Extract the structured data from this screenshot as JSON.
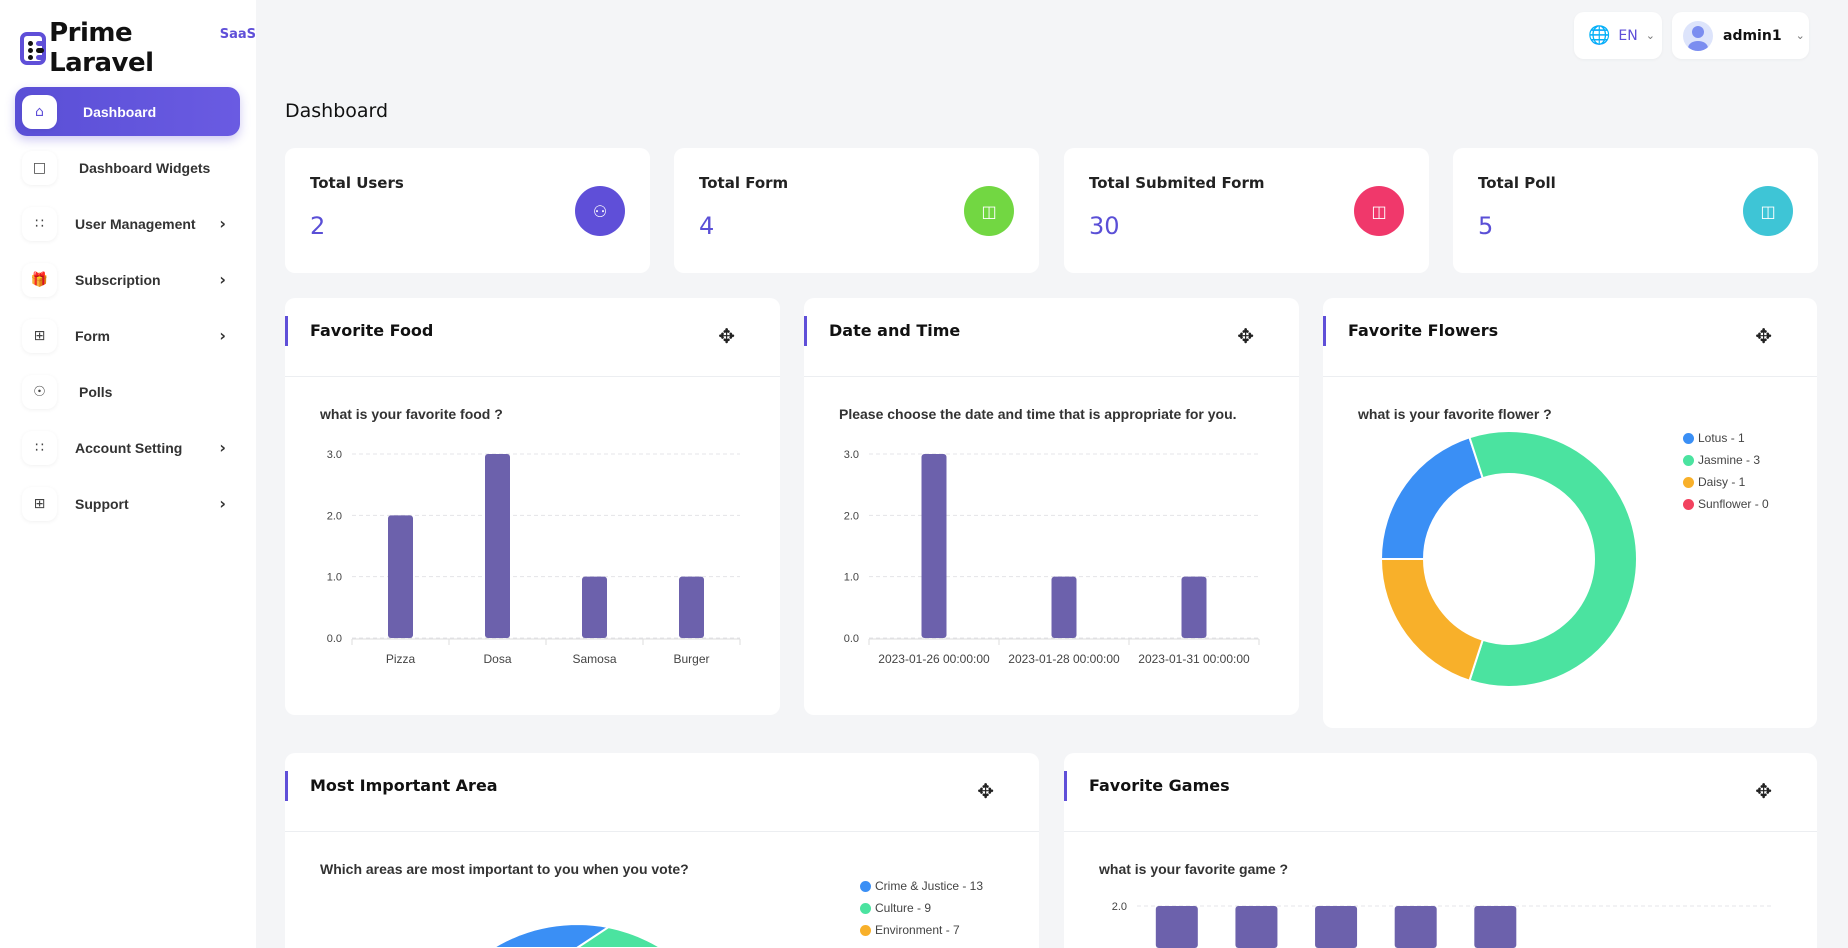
{
  "brand": {
    "name": "Prime Laravel",
    "badge": "SaaS",
    "color": "#5f4fd8"
  },
  "header": {
    "language": "EN",
    "user": "admin1"
  },
  "sidebar": {
    "items": [
      {
        "label": "Dashboard",
        "icon": "home-icon",
        "active": true,
        "has_children": false
      },
      {
        "label": "Dashboard Widgets",
        "icon": "square-icon",
        "has_children": false
      },
      {
        "label": "User Management",
        "icon": "grid-icon",
        "has_children": true
      },
      {
        "label": "Subscription",
        "icon": "gift-icon",
        "has_children": true
      },
      {
        "label": "Form",
        "icon": "table-icon",
        "has_children": true
      },
      {
        "label": "Polls",
        "icon": "accessibility-icon",
        "has_children": false
      },
      {
        "label": "Account Setting",
        "icon": "grid-plus-icon",
        "has_children": true
      },
      {
        "label": "Support",
        "icon": "table-icon",
        "has_children": true
      }
    ]
  },
  "page": {
    "title": "Dashboard"
  },
  "stats": [
    {
      "label": "Total Users",
      "value": "2",
      "color": "#5f4fd8",
      "icon": "users-icon"
    },
    {
      "label": "Total Form",
      "value": "4",
      "color": "#72d742",
      "icon": "form-icon"
    },
    {
      "label": "Total Submited Form",
      "value": "30",
      "color": "#f0386b",
      "icon": "form-icon"
    },
    {
      "label": "Total Poll",
      "value": "5",
      "color": "#3ec5d6",
      "icon": "form-icon"
    }
  ],
  "widgets": {
    "food": {
      "title": "Favorite Food",
      "question": "what is your favorite food ?"
    },
    "date": {
      "title": "Date and Time",
      "question": "Please choose the date and time that is appropriate for you."
    },
    "flowers": {
      "title": "Favorite Flowers",
      "question": "what is your favorite flower ?"
    },
    "area": {
      "title": "Most Important Area",
      "question": "Which areas are most important to you when you vote?"
    },
    "games": {
      "title": "Favorite Games",
      "question": "what is your favorite game ?"
    }
  },
  "chart_data": [
    {
      "type": "bar",
      "categories": [
        "Pizza",
        "Dosa",
        "Samosa",
        "Burger"
      ],
      "values": [
        2,
        3,
        1,
        1
      ],
      "yticks": [
        "0.0",
        "1.0",
        "2.0",
        "3.0"
      ],
      "ylim": [
        0,
        3
      ],
      "grid": true,
      "color": "#6c61ac"
    },
    {
      "type": "bar",
      "categories": [
        "2023-01-26 00:00:00",
        "2023-01-28 00:00:00",
        "2023-01-31 00:00:00"
      ],
      "values": [
        3,
        1,
        1
      ],
      "yticks": [
        "0.0",
        "1.0",
        "2.0",
        "3.0"
      ],
      "ylim": [
        0,
        3
      ],
      "grid": true,
      "color": "#6c61ac"
    },
    {
      "type": "pie",
      "donut": true,
      "legend": "right",
      "labels": [
        "Lotus - 1",
        "Jasmine - 3",
        "Daisy - 1",
        "Sunflower - 0"
      ],
      "values": [
        1,
        3,
        1,
        0
      ],
      "colors": [
        "#3a8ff5",
        "#4be3a0",
        "#f8b02a",
        "#f2425f"
      ]
    },
    {
      "type": "pie",
      "legend": "right",
      "labels": [
        "Crime & Justice - 13",
        "Culture - 9",
        "Environment - 7"
      ],
      "values": [
        13,
        9,
        7
      ],
      "colors": [
        "#3a8ff5",
        "#4be3a0",
        "#f8b02a"
      ]
    },
    {
      "type": "bar",
      "values": [
        2,
        2,
        2,
        2,
        2
      ],
      "yticks": [
        "2.0"
      ],
      "grid": true,
      "color": "#6c61ac"
    }
  ]
}
